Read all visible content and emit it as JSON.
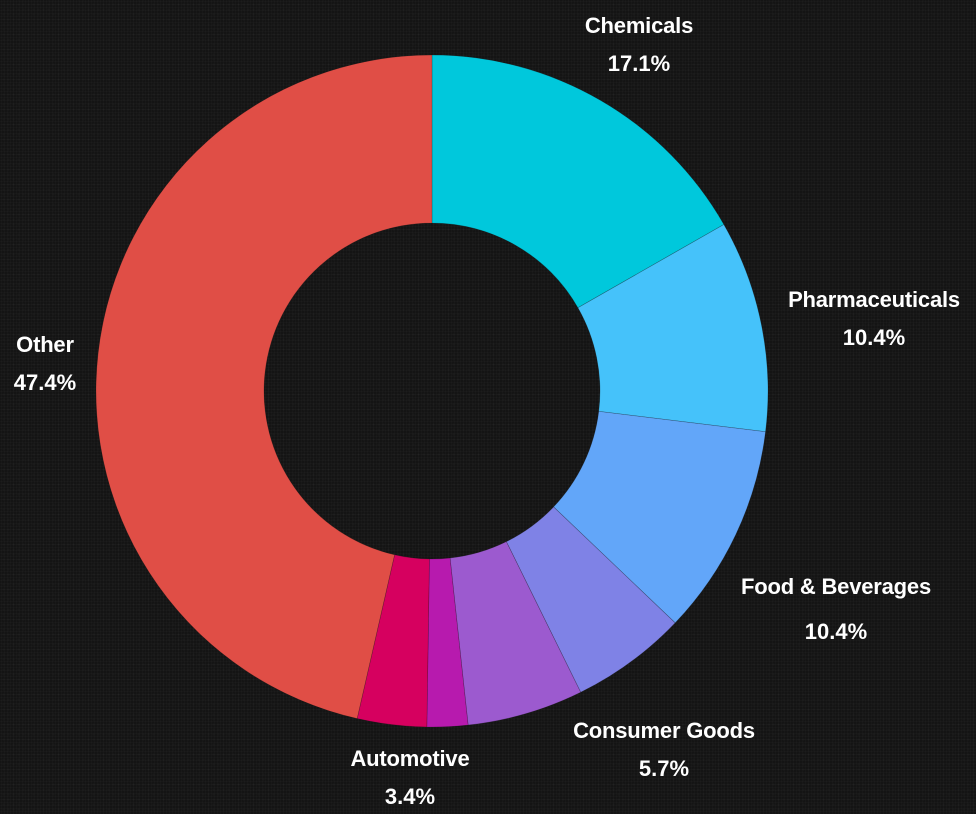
{
  "chart_data": {
    "type": "pie",
    "style": "donut",
    "title": "",
    "start_angle": "top, clockwise",
    "slices": [
      {
        "label": "Chemicals",
        "value": 17.1,
        "display": "17.1%",
        "color": "#00C8DC",
        "labeled": true
      },
      {
        "label": "Pharmaceuticals",
        "value": 10.4,
        "display": "10.4%",
        "color": "#45C2FA",
        "labeled": true
      },
      {
        "label": "Food & Beverages",
        "value": 10.4,
        "display": "10.4%",
        "color": "#62A6F9",
        "labeled": true
      },
      {
        "label": "",
        "value": 5.7,
        "display": "",
        "color": "#7F82E6",
        "labeled": false
      },
      {
        "label": "Consumer Goods",
        "value": 5.7,
        "display": "5.7%",
        "color": "#9C5ACF",
        "labeled": true
      },
      {
        "label": "",
        "value": 2.0,
        "display": "",
        "color": "#B71AAE",
        "labeled": false
      },
      {
        "label": "Automotive",
        "value": 3.4,
        "display": "3.4%",
        "color": "#D6005F",
        "labeled": true
      },
      {
        "label": "Other",
        "value": 47.4,
        "display": "47.4%",
        "color": "#E04E46",
        "labeled": true
      }
    ]
  }
}
